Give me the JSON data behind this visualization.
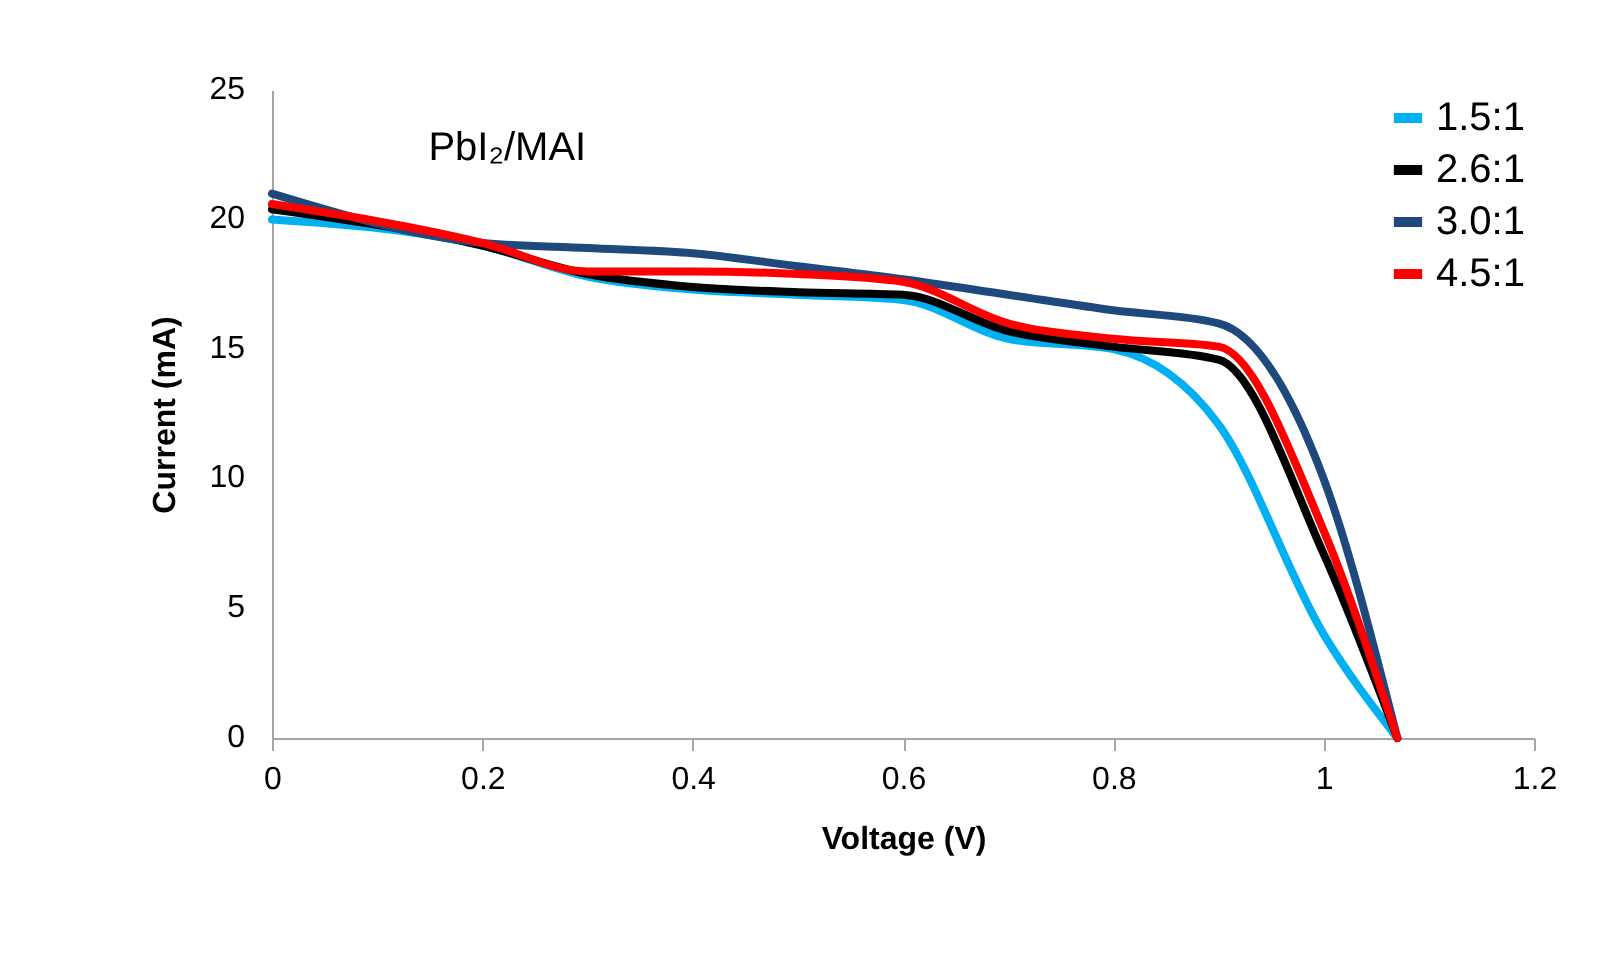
{
  "chart_data": {
    "type": "line",
    "title": "PbI₂/MAI",
    "xlabel": "Voltage (V)",
    "ylabel": "Current (mA)",
    "x": [
      0,
      0.2,
      0.3,
      0.4,
      0.5,
      0.6,
      0.7,
      0.8,
      0.9,
      1.0,
      1.07
    ],
    "series": [
      {
        "name": "1.5:1",
        "color": "#00b0f0",
        "values": [
          20,
          19,
          17.8,
          17.3,
          17.1,
          16.9,
          15.4,
          15.0,
          12.1,
          4.0,
          0
        ]
      },
      {
        "name": "2.6:1",
        "color": "#000000",
        "values": [
          20.4,
          19,
          17.9,
          17.4,
          17.2,
          17.1,
          15.7,
          15.1,
          14.6,
          7.1,
          0
        ]
      },
      {
        "name": "3.0:1",
        "color": "#1f497d",
        "values": [
          21,
          19.1,
          18.9,
          18.7,
          18.2,
          17.7,
          17.1,
          16.5,
          16.0,
          10.0,
          0
        ]
      },
      {
        "name": "4.5:1",
        "color": "#ff0000",
        "values": [
          20.6,
          19.1,
          18.0,
          18.0,
          17.9,
          17.6,
          16.0,
          15.4,
          15.1,
          8.0,
          0
        ]
      }
    ],
    "xlim": [
      0,
      1.2
    ],
    "xticks": [
      0,
      0.2,
      0.4,
      0.6,
      0.8,
      1,
      1.2
    ],
    "ylim": [
      0,
      25
    ],
    "yticks": [
      0,
      5,
      10,
      15,
      20,
      25
    ],
    "grid": false,
    "legend": "top right"
  }
}
